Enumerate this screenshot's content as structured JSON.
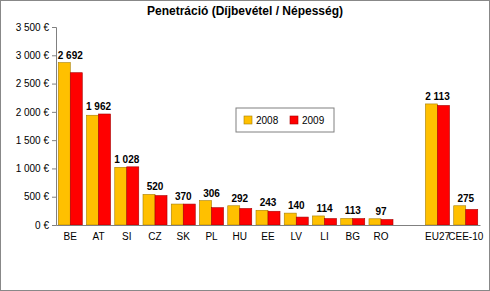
{
  "chart_data": {
    "type": "bar",
    "title": "Penetráció (Díjbevétel / Népesség)",
    "categories": [
      "BE",
      "AT",
      "SI",
      "CZ",
      "SK",
      "PL",
      "HU",
      "EE",
      "LV",
      "LI",
      "BG",
      "RO",
      null,
      "EU27",
      "CEE-10"
    ],
    "series": [
      {
        "name": "2008",
        "color": "#ffc000",
        "values": [
          2870,
          1940,
          1020,
          540,
          370,
          430,
          340,
          260,
          210,
          160,
          115,
          110,
          null,
          2140,
          340
        ]
      },
      {
        "name": "2009",
        "color": "#ff0000",
        "values": [
          2692,
          1962,
          1028,
          520,
          370,
          306,
          292,
          243,
          140,
          114,
          113,
          97,
          null,
          2113,
          275
        ],
        "data_labels": true,
        "value_labels": [
          "2 692",
          "1 962",
          "1 028",
          "520",
          "370",
          "306",
          "292",
          "243",
          "140",
          "114",
          "113",
          "97",
          null,
          "2 113",
          "275"
        ]
      }
    ],
    "ylim": [
      0,
      3500
    ],
    "yticks": [
      {
        "value": 0,
        "label": "0 €"
      },
      {
        "value": 500,
        "label": "500 €"
      },
      {
        "value": 1000,
        "label": "1 000 €"
      },
      {
        "value": 1500,
        "label": "1 500 €"
      },
      {
        "value": 2000,
        "label": "2 000 €"
      },
      {
        "value": 2500,
        "label": "2 500 €"
      },
      {
        "value": 3000,
        "label": "3 000 €"
      },
      {
        "value": 3500,
        "label": "3 500 €"
      }
    ],
    "grid": false,
    "legend": "center"
  }
}
